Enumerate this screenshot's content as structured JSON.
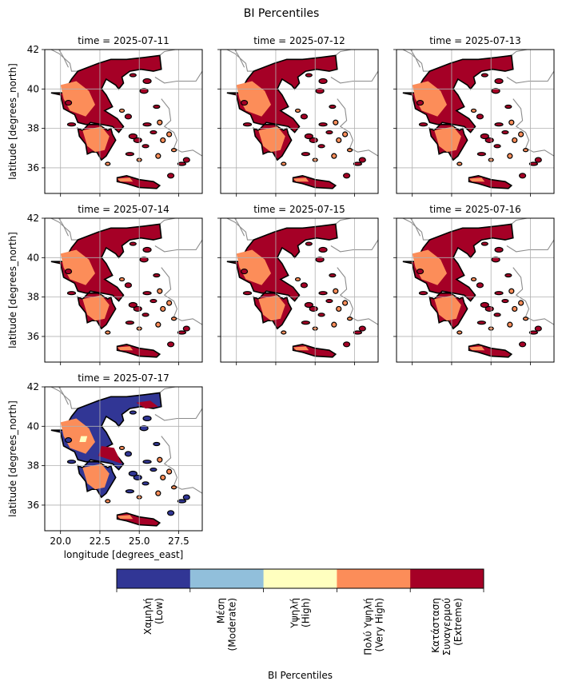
{
  "title": "BI Percentiles",
  "chart_data": {
    "type": "heatmap",
    "title": "BI Percentiles",
    "xlabel": "longitude [degrees_east]",
    "ylabel": "latitude [degrees_north]",
    "xlim": [
      19.0,
      29.0
    ],
    "ylim": [
      34.7,
      42.0
    ],
    "xticks": [
      "20.0",
      "22.5",
      "25.0",
      "27.5"
    ],
    "yticks": [
      "36",
      "38",
      "40",
      "42"
    ],
    "grid": true,
    "panels": [
      {
        "title": "time = 2025-07-11",
        "dominant_class": "Κατάσταση Συναγερμού (Extreme)",
        "secondary_class": "Πολύ Υψηλή (Very High)"
      },
      {
        "title": "time = 2025-07-12",
        "dominant_class": "Κατάσταση Συναγερμού (Extreme)",
        "secondary_class": "Πολύ Υψηλή (Very High)"
      },
      {
        "title": "time = 2025-07-13",
        "dominant_class": "Κατάσταση Συναγερμού (Extreme)",
        "secondary_class": "Πολύ Υψηλή (Very High)"
      },
      {
        "title": "time = 2025-07-14",
        "dominant_class": "Κατάσταση Συναγερμού (Extreme)",
        "secondary_class": "Πολύ Υψηλή (Very High)"
      },
      {
        "title": "time = 2025-07-15",
        "dominant_class": "Κατάσταση Συναγερμού (Extreme)",
        "secondary_class": "Πολύ Υψηλή (Very High)"
      },
      {
        "title": "time = 2025-07-16",
        "dominant_class": "Κατάσταση Συναγερμού (Extreme)",
        "secondary_class": "Πολύ Υψηλή (Very High)"
      },
      {
        "title": "time = 2025-07-17",
        "dominant_class": "Χαμηλή (Low)",
        "secondary_class": "Πολύ Υψηλή (Very High)"
      }
    ],
    "colorbar": {
      "label": "BI Percentiles",
      "classes": [
        {
          "line1": "Χαμηλή",
          "line2": "(Low)",
          "color": "#313695"
        },
        {
          "line1": "Μέση",
          "line2": "(Moderate)",
          "color": "#91bfdb"
        },
        {
          "line1": "Υψηλή",
          "line2": "(High)",
          "color": "#ffffbf"
        },
        {
          "line1": "Πολύ Υψηλή",
          "line2": "(Very High)",
          "color": "#fc8d59"
        },
        {
          "line1": "Κατάσταση",
          "line1b": "Συναγερμού",
          "line2": "(Extreme)",
          "color": "#a50026"
        }
      ]
    }
  }
}
